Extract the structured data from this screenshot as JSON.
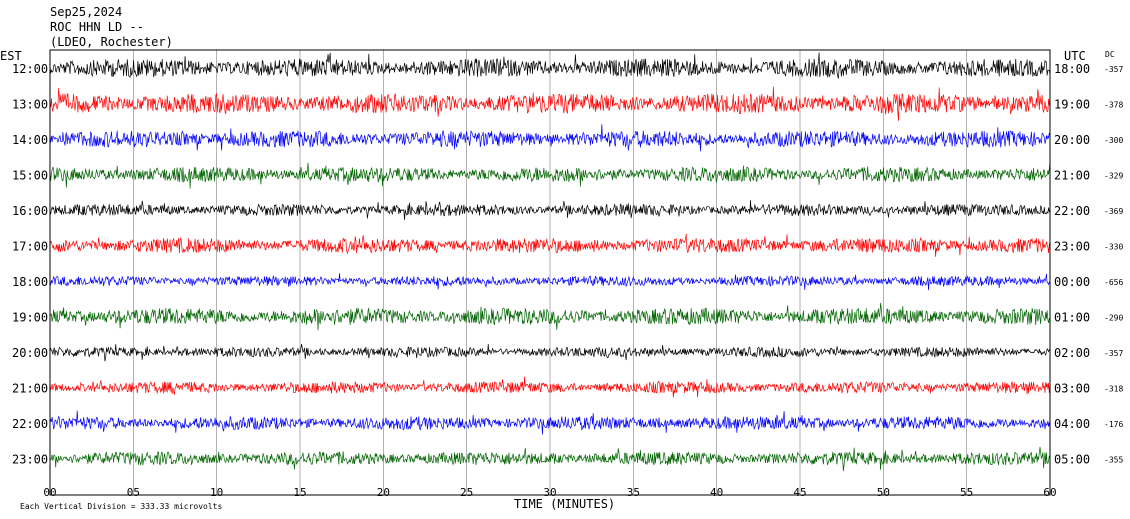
{
  "header": {
    "date": "Sep25,2024",
    "station": "ROC HHN LD --",
    "network": "(LDEO, Rochester)"
  },
  "left_tz": "EST",
  "right_tz": "UTC",
  "dc_header": "DC",
  "footer": "Each Vertical Division =  333.33 microvolts",
  "colors": {
    "trace_cycle": [
      "#000000",
      "#ff0000",
      "#0000ff",
      "#006400"
    ],
    "grid": "#7f7f7f",
    "frame": "#000000"
  },
  "chart_data": {
    "type": "helicorder",
    "xlabel": "TIME (MINUTES)",
    "x_ticks": [
      "00",
      "05",
      "10",
      "15",
      "20",
      "25",
      "30",
      "35",
      "40",
      "45",
      "50",
      "55",
      "60"
    ],
    "xlim": [
      0,
      60
    ],
    "grid": true,
    "rows": [
      {
        "est": "12:00",
        "utc": "18:00",
        "dc": "-357",
        "color": "#000000",
        "amplitude": 0.55
      },
      {
        "est": "13:00",
        "utc": "19:00",
        "dc": "-378",
        "color": "#ff0000",
        "amplitude": 0.6
      },
      {
        "est": "14:00",
        "utc": "20:00",
        "dc": "-300",
        "color": "#0000ff",
        "amplitude": 0.5
      },
      {
        "est": "15:00",
        "utc": "21:00",
        "dc": "-329",
        "color": "#006400",
        "amplitude": 0.45
      },
      {
        "est": "16:00",
        "utc": "22:00",
        "dc": "-369",
        "color": "#000000",
        "amplitude": 0.35
      },
      {
        "est": "17:00",
        "utc": "23:00",
        "dc": "-330",
        "color": "#ff0000",
        "amplitude": 0.45
      },
      {
        "est": "18:00",
        "utc": "00:00",
        "dc": "-656",
        "color": "#0000ff",
        "amplitude": 0.3
      },
      {
        "est": "19:00",
        "utc": "01:00",
        "dc": "-290",
        "color": "#006400",
        "amplitude": 0.5
      },
      {
        "est": "20:00",
        "utc": "02:00",
        "dc": "-357",
        "color": "#000000",
        "amplitude": 0.3
      },
      {
        "est": "21:00",
        "utc": "03:00",
        "dc": "-318",
        "color": "#ff0000",
        "amplitude": 0.35
      },
      {
        "est": "22:00",
        "utc": "04:00",
        "dc": "-176",
        "color": "#0000ff",
        "amplitude": 0.4
      },
      {
        "est": "23:00",
        "utc": "05:00",
        "dc": "-355",
        "color": "#006400",
        "amplitude": 0.4
      }
    ]
  }
}
